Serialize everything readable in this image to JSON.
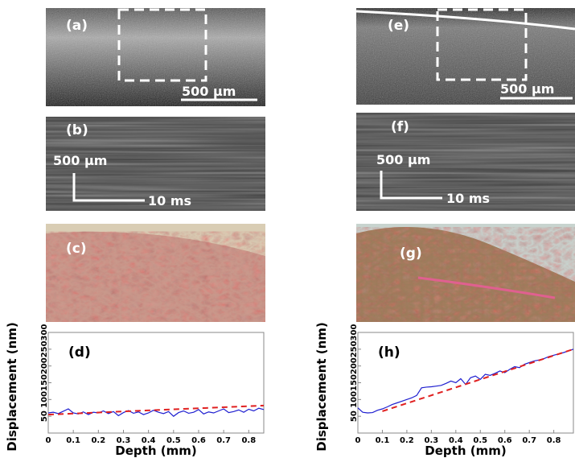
{
  "panels": [
    {
      "label": "(a)",
      "scale": "500 µm"
    },
    {
      "label": "(b)",
      "scale_y": "500 µm",
      "scale_x": "10 ms"
    },
    {
      "label": "(c)"
    },
    {
      "label": "(e)",
      "scale": "500 µm"
    },
    {
      "label": "(f)",
      "scale_y": "500 µm",
      "scale_x": "10 ms"
    },
    {
      "label": "(g)"
    }
  ],
  "chart_data": [
    {
      "type": "line",
      "title": "(d)",
      "x_label": "Depth (mm)",
      "y_label": "Displacement (nm)",
      "xlim": [
        0,
        0.86
      ],
      "xticks": [
        0,
        0.1,
        0.2,
        0.3,
        0.4,
        0.5,
        0.6,
        0.7,
        0.8
      ],
      "ylim": [
        0,
        300
      ],
      "yticks": [
        50,
        100,
        150,
        200,
        250,
        300
      ],
      "series": [
        {
          "color": "#1f1fd0",
          "x": [
            0,
            0.02,
            0.04,
            0.06,
            0.08,
            0.1,
            0.12,
            0.14,
            0.16,
            0.18,
            0.2,
            0.22,
            0.24,
            0.26,
            0.28,
            0.3,
            0.32,
            0.34,
            0.36,
            0.38,
            0.4,
            0.42,
            0.44,
            0.46,
            0.48,
            0.5,
            0.52,
            0.54,
            0.56,
            0.58,
            0.6,
            0.62,
            0.64,
            0.66,
            0.68,
            0.7,
            0.72,
            0.74,
            0.76,
            0.78,
            0.8,
            0.82,
            0.84,
            0.86
          ],
          "values": [
            60,
            62,
            58,
            65,
            72,
            60,
            57,
            63,
            55,
            62,
            60,
            66,
            58,
            64,
            52,
            61,
            67,
            59,
            63,
            55,
            60,
            68,
            62,
            58,
            64,
            50,
            61,
            66,
            59,
            62,
            70,
            57,
            63,
            60,
            66,
            72,
            61,
            64,
            69,
            62,
            71,
            66,
            74,
            70
          ]
        },
        {
          "color": "#e02020",
          "dashed": true,
          "x": [
            0,
            0.86
          ],
          "values": [
            55,
            82
          ]
        }
      ]
    },
    {
      "type": "line",
      "title": "(h)",
      "x_label": "Depth (mm)",
      "y_label": "Displacement (nm)",
      "xlim": [
        0,
        0.88
      ],
      "xticks": [
        0,
        0.1,
        0.2,
        0.3,
        0.4,
        0.5,
        0.6,
        0.7,
        0.8
      ],
      "ylim": [
        0,
        300
      ],
      "yticks": [
        50,
        100,
        150,
        200,
        250,
        300
      ],
      "series": [
        {
          "color": "#1f1fd0",
          "x": [
            0,
            0.02,
            0.04,
            0.06,
            0.08,
            0.1,
            0.12,
            0.14,
            0.16,
            0.18,
            0.2,
            0.22,
            0.24,
            0.26,
            0.28,
            0.3,
            0.32,
            0.34,
            0.36,
            0.38,
            0.4,
            0.42,
            0.44,
            0.46,
            0.48,
            0.5,
            0.52,
            0.54,
            0.56,
            0.58,
            0.6,
            0.62,
            0.64,
            0.66,
            0.68,
            0.7,
            0.72,
            0.74,
            0.76,
            0.78,
            0.8,
            0.82,
            0.84,
            0.86,
            0.88
          ],
          "values": [
            75,
            62,
            60,
            61,
            68,
            72,
            78,
            85,
            90,
            95,
            100,
            105,
            112,
            135,
            137,
            138,
            140,
            142,
            148,
            155,
            150,
            162,
            145,
            165,
            170,
            160,
            175,
            172,
            178,
            185,
            180,
            190,
            198,
            195,
            205,
            210,
            215,
            218,
            222,
            228,
            232,
            236,
            240,
            245,
            250
          ]
        },
        {
          "color": "#e02020",
          "dashed": true,
          "x": [
            0.1,
            0.88
          ],
          "values": [
            65,
            250
          ]
        }
      ]
    }
  ]
}
